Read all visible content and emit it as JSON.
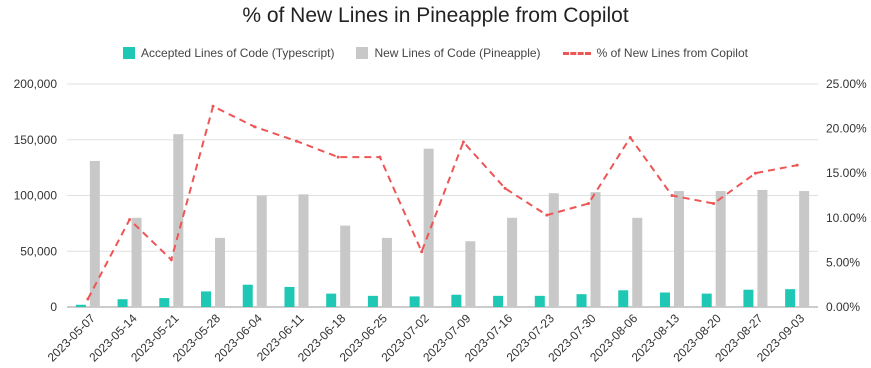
{
  "chart_data": {
    "type": "bar",
    "title": "% of New Lines in Pineapple from Copilot",
    "categories": [
      "2023-05-07",
      "2023-05-14",
      "2023-05-21",
      "2023-05-28",
      "2023-06-04",
      "2023-06-11",
      "2023-06-18",
      "2023-06-25",
      "2023-07-02",
      "2023-07-09",
      "2023-07-16",
      "2023-07-23",
      "2023-07-30",
      "2023-08-06",
      "2023-08-13",
      "2023-08-20",
      "2023-08-27",
      "2023-09-03"
    ],
    "series": [
      {
        "name": "Accepted Lines of Code (Typescript)",
        "kind": "bar",
        "axis": "left",
        "color": "#1ec8b4",
        "values": [
          2000,
          7000,
          8000,
          14000,
          20000,
          18000,
          12000,
          10000,
          9500,
          11000,
          10000,
          10000,
          11500,
          15000,
          13000,
          12000,
          15500,
          16000
        ]
      },
      {
        "name": "New Lines of Code (Pineapple)",
        "kind": "bar",
        "axis": "left",
        "color": "#c8c8c8",
        "values": [
          131000,
          80000,
          155000,
          62000,
          100000,
          101000,
          73000,
          62000,
          142000,
          59000,
          80000,
          102000,
          103000,
          80000,
          104000,
          104000,
          105000,
          104000
        ]
      },
      {
        "name": "% of New Lines from Copilot",
        "kind": "line",
        "axis": "right",
        "color": "#ee5555",
        "dash": true,
        "values": [
          0.9,
          9.8,
          5.3,
          22.5,
          20.2,
          18.6,
          16.8,
          16.8,
          6.2,
          18.5,
          13.3,
          10.3,
          11.6,
          19.0,
          12.5,
          11.6,
          15.0,
          15.9
        ]
      }
    ],
    "y_left": {
      "min": 0,
      "max": 200000,
      "ticks": [
        "0",
        "50,000",
        "100,000",
        "150,000",
        "200,000"
      ]
    },
    "y_right": {
      "min": 0,
      "max": 25,
      "ticks": [
        "0.00%",
        "5.00%",
        "10.00%",
        "15.00%",
        "20.00%",
        "25.00%"
      ]
    },
    "grid": true,
    "legend_position": "top"
  }
}
